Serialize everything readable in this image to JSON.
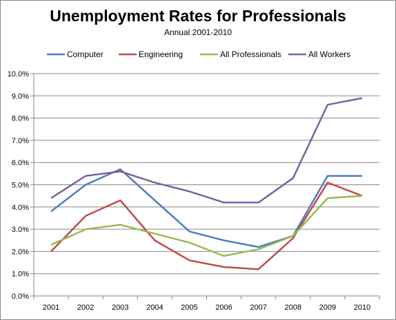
{
  "chart_data": {
    "type": "line",
    "title": "Unemployment Rates for Professionals",
    "subtitle": "Annual 2001-2010",
    "xlabel": "",
    "ylabel": "",
    "x": [
      "2001",
      "2002",
      "2003",
      "2004",
      "2005",
      "2006",
      "2007",
      "2008",
      "2009",
      "2010"
    ],
    "ylim": [
      0,
      10
    ],
    "yticks": [
      "0.0%",
      "1.0%",
      "2.0%",
      "3.0%",
      "4.0%",
      "5.0%",
      "6.0%",
      "7.0%",
      "8.0%",
      "9.0%",
      "10.0%"
    ],
    "grid": "horizontal",
    "legend_position": "top",
    "series": [
      {
        "name": "Computer",
        "color": "#4A7EBB",
        "values": [
          3.8,
          5.0,
          5.7,
          4.3,
          2.9,
          2.5,
          2.2,
          2.7,
          5.4,
          5.4
        ]
      },
      {
        "name": "Engineering",
        "color": "#BE4B48",
        "values": [
          2.0,
          3.6,
          4.3,
          2.5,
          1.6,
          1.3,
          1.2,
          2.6,
          5.1,
          4.5
        ]
      },
      {
        "name": "All Professionals",
        "color": "#98B954",
        "values": [
          2.3,
          3.0,
          3.2,
          2.8,
          2.4,
          1.8,
          2.1,
          2.7,
          4.4,
          4.5
        ]
      },
      {
        "name": "All Workers",
        "color": "#7D60A0",
        "values": [
          4.4,
          5.4,
          5.6,
          5.1,
          4.7,
          4.2,
          4.2,
          5.3,
          8.6,
          8.9
        ]
      }
    ]
  }
}
